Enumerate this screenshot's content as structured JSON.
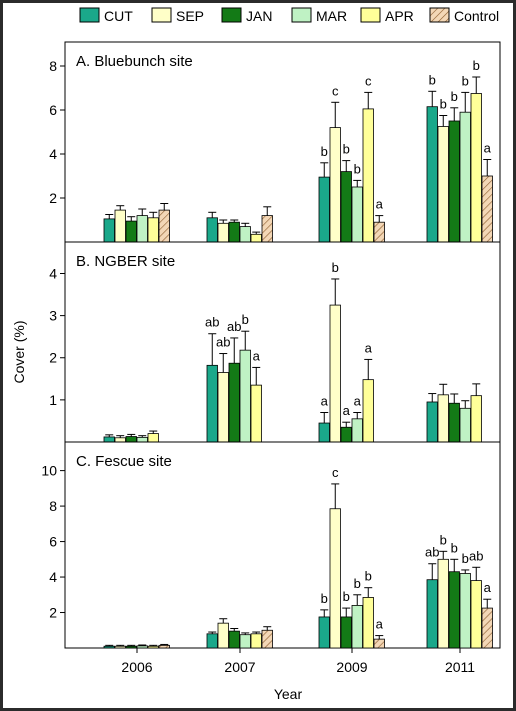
{
  "legend": [
    {
      "name": "CUT",
      "color": "#1aa88a",
      "hatch": false
    },
    {
      "name": "SEP",
      "color": "#ffffc8",
      "hatch": false
    },
    {
      "name": "JAN",
      "color": "#137a16",
      "hatch": false
    },
    {
      "name": "MAR",
      "color": "#bff2c4",
      "hatch": false
    },
    {
      "name": "APR",
      "color": "#ffff99",
      "hatch": false
    },
    {
      "name": "Control",
      "color": "#f3d7b6",
      "hatch": true
    }
  ],
  "xlabel": "Year",
  "ylabel": "Cover (%)",
  "chart_data": [
    {
      "type": "bar",
      "title": "A. Bluebunch site",
      "categories": [
        "2006",
        "2007",
        "2009",
        "2011"
      ],
      "ylim": [
        0,
        9
      ],
      "yticks": [
        2,
        4,
        6,
        8
      ],
      "series": [
        {
          "name": "CUT",
          "values": [
            1.05,
            1.1,
            2.95,
            6.15
          ],
          "errors": [
            0.2,
            0.25,
            0.65,
            0.7
          ]
        },
        {
          "name": "SEP",
          "values": [
            1.45,
            0.85,
            5.2,
            5.25
          ],
          "errors": [
            0.2,
            0.15,
            1.15,
            0.5
          ]
        },
        {
          "name": "JAN",
          "values": [
            0.95,
            0.9,
            3.2,
            5.5
          ],
          "errors": [
            0.2,
            0.1,
            0.5,
            0.6
          ]
        },
        {
          "name": "MAR",
          "values": [
            1.2,
            0.7,
            2.5,
            5.9
          ],
          "errors": [
            0.3,
            0.15,
            0.3,
            0.9
          ]
        },
        {
          "name": "APR",
          "values": [
            1.1,
            0.35,
            6.05,
            6.75
          ],
          "errors": [
            0.25,
            0.1,
            0.75,
            0.75
          ]
        },
        {
          "name": "Control",
          "values": [
            1.45,
            1.2,
            0.9,
            3.0
          ],
          "errors": [
            0.3,
            0.4,
            0.3,
            0.75
          ]
        }
      ],
      "annotations": [
        {
          "category": "2009",
          "series": "CUT",
          "text": "b"
        },
        {
          "category": "2009",
          "series": "SEP",
          "text": "c"
        },
        {
          "category": "2009",
          "series": "JAN",
          "text": "b"
        },
        {
          "category": "2009",
          "series": "MAR",
          "text": "b"
        },
        {
          "category": "2009",
          "series": "APR",
          "text": "c"
        },
        {
          "category": "2009",
          "series": "Control",
          "text": "a"
        },
        {
          "category": "2011",
          "series": "CUT",
          "text": "b"
        },
        {
          "category": "2011",
          "series": "SEP",
          "text": "b"
        },
        {
          "category": "2011",
          "series": "JAN",
          "text": "b"
        },
        {
          "category": "2011",
          "series": "MAR",
          "text": "b"
        },
        {
          "category": "2011",
          "series": "APR",
          "text": "b"
        },
        {
          "category": "2011",
          "series": "Control",
          "text": "a"
        }
      ]
    },
    {
      "type": "bar",
      "title": "B. NGBER site",
      "categories": [
        "2006",
        "2007",
        "2009",
        "2011"
      ],
      "ylim": [
        0,
        4.7
      ],
      "yticks": [
        1,
        2,
        3,
        4
      ],
      "series": [
        {
          "name": "CUT",
          "values": [
            0.12,
            1.82,
            0.45,
            0.95
          ],
          "errors": [
            0.05,
            0.75,
            0.25,
            0.2
          ]
        },
        {
          "name": "SEP",
          "values": [
            0.1,
            1.65,
            3.25,
            1.12
          ],
          "errors": [
            0.05,
            0.45,
            0.62,
            0.25
          ]
        },
        {
          "name": "JAN",
          "values": [
            0.13,
            1.87,
            0.35,
            0.92
          ],
          "errors": [
            0.05,
            0.6,
            0.12,
            0.22
          ]
        },
        {
          "name": "MAR",
          "values": [
            0.11,
            2.18,
            0.55,
            0.8
          ],
          "errors": [
            0.04,
            0.45,
            0.15,
            0.18
          ]
        },
        {
          "name": "APR",
          "values": [
            0.2,
            1.35,
            1.48,
            1.1
          ],
          "errors": [
            0.06,
            0.42,
            0.48,
            0.28
          ]
        }
      ],
      "annotations": [
        {
          "category": "2007",
          "series": "CUT",
          "text": "ab"
        },
        {
          "category": "2007",
          "series": "SEP",
          "text": "ab"
        },
        {
          "category": "2007",
          "series": "JAN",
          "text": "ab"
        },
        {
          "category": "2007",
          "series": "MAR",
          "text": "b"
        },
        {
          "category": "2007",
          "series": "APR",
          "text": "a"
        },
        {
          "category": "2009",
          "series": "CUT",
          "text": "a"
        },
        {
          "category": "2009",
          "series": "SEP",
          "text": "b"
        },
        {
          "category": "2009",
          "series": "JAN",
          "text": "a"
        },
        {
          "category": "2009",
          "series": "MAR",
          "text": "a"
        },
        {
          "category": "2009",
          "series": "APR",
          "text": "a"
        }
      ]
    },
    {
      "type": "bar",
      "title": "C. Fescue site",
      "categories": [
        "2006",
        "2007",
        "2009",
        "2011"
      ],
      "ylim": [
        0,
        11.5
      ],
      "yticks": [
        2,
        4,
        6,
        8,
        10
      ],
      "series": [
        {
          "name": "CUT",
          "values": [
            0.1,
            0.8,
            1.75,
            3.85
          ],
          "errors": [
            0.05,
            0.1,
            0.4,
            0.9
          ]
        },
        {
          "name": "SEP",
          "values": [
            0.1,
            1.4,
            7.85,
            5.0
          ],
          "errors": [
            0.05,
            0.25,
            1.4,
            0.45
          ]
        },
        {
          "name": "JAN",
          "values": [
            0.1,
            0.95,
            1.75,
            4.3
          ],
          "errors": [
            0.05,
            0.15,
            0.5,
            0.7
          ]
        },
        {
          "name": "MAR",
          "values": [
            0.12,
            0.75,
            2.4,
            4.2
          ],
          "errors": [
            0.05,
            0.1,
            0.6,
            0.2
          ]
        },
        {
          "name": "APR",
          "values": [
            0.1,
            0.8,
            2.85,
            3.8
          ],
          "errors": [
            0.05,
            0.1,
            0.55,
            0.75
          ]
        },
        {
          "name": "Control",
          "values": [
            0.15,
            1.0,
            0.5,
            2.25
          ],
          "errors": [
            0.05,
            0.2,
            0.2,
            0.5
          ]
        }
      ],
      "annotations": [
        {
          "category": "2009",
          "series": "CUT",
          "text": "b"
        },
        {
          "category": "2009",
          "series": "SEP",
          "text": "c"
        },
        {
          "category": "2009",
          "series": "JAN",
          "text": "b"
        },
        {
          "category": "2009",
          "series": "MAR",
          "text": "b"
        },
        {
          "category": "2009",
          "series": "APR",
          "text": "b"
        },
        {
          "category": "2009",
          "series": "Control",
          "text": "a"
        },
        {
          "category": "2011",
          "series": "CUT",
          "text": "ab"
        },
        {
          "category": "2011",
          "series": "SEP",
          "text": "b"
        },
        {
          "category": "2011",
          "series": "JAN",
          "text": "b"
        },
        {
          "category": "2011",
          "series": "MAR",
          "text": "b"
        },
        {
          "category": "2011",
          "series": "APR",
          "text": "ab"
        },
        {
          "category": "2011",
          "series": "Control",
          "text": "a"
        }
      ]
    }
  ]
}
